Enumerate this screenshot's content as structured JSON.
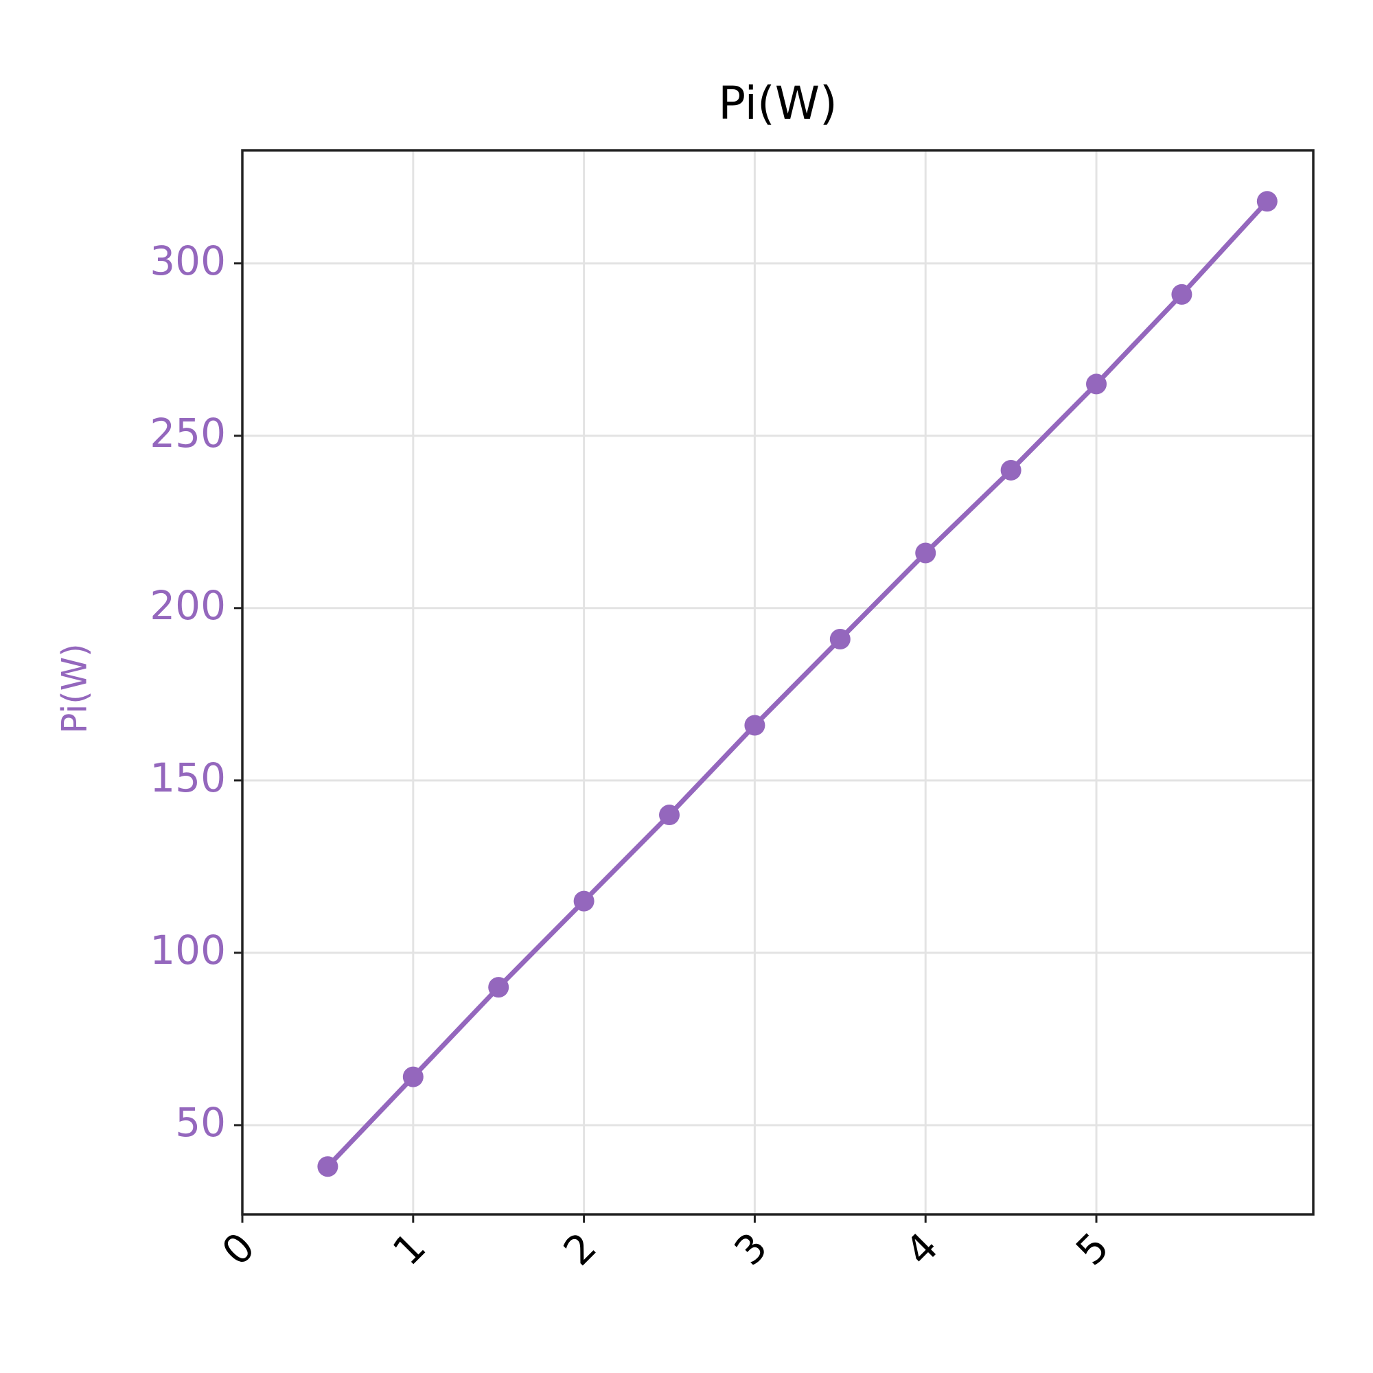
{
  "chart_data": {
    "type": "line",
    "title": "Pi(W)",
    "ylabel": "Pi(W)",
    "x": [
      0.5,
      1,
      1.5,
      2,
      2.5,
      3,
      3.5,
      4,
      4.5,
      5,
      5.5,
      6
    ],
    "values": [
      38,
      64,
      90,
      115,
      140,
      166,
      191,
      216,
      240,
      265,
      291,
      318
    ],
    "color": "#9467bd",
    "xlim": [
      0,
      6.27
    ],
    "xticks": [
      0,
      1,
      2,
      3,
      4,
      5
    ],
    "ylim": [
      24.1,
      332.8
    ],
    "yticks": [
      50,
      100,
      150,
      200,
      250,
      300
    ],
    "grid": true
  }
}
